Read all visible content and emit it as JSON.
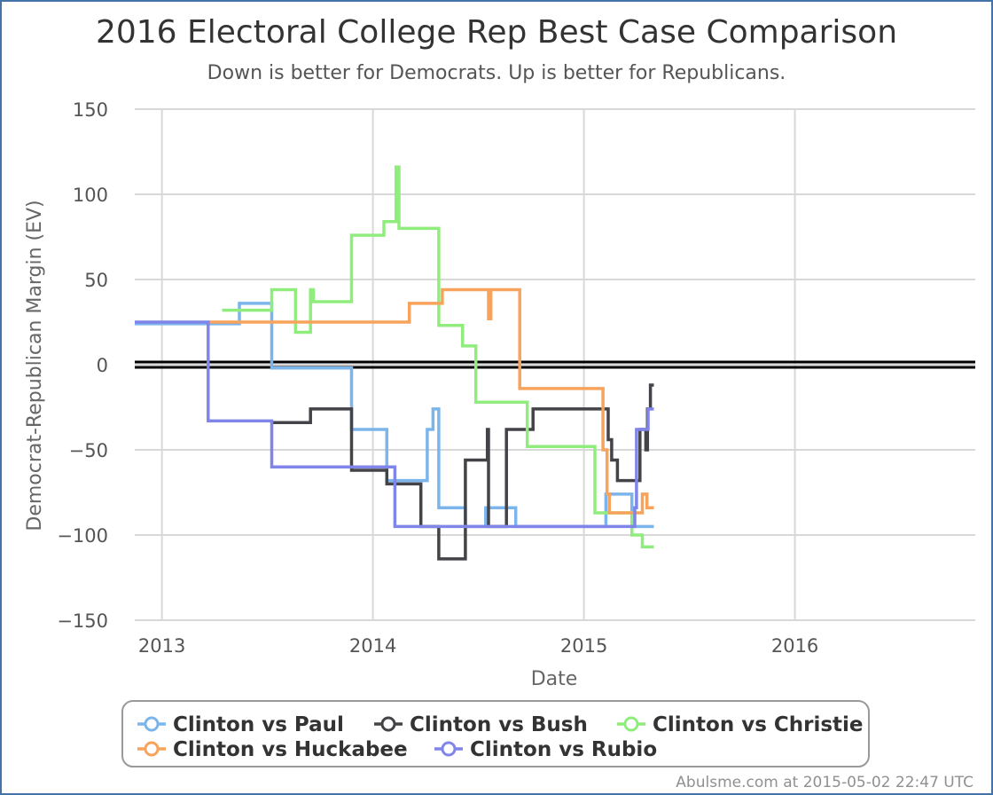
{
  "chart_data": {
    "type": "line",
    "title": "2016 Electoral College Rep Best Case Comparison",
    "subtitle": "Down is better for Democrats. Up is better for Republicans.",
    "xlabel": "Date",
    "ylabel": "Democrat-Republican Margin (EV)",
    "xlim": [
      "2012-11-15",
      "2016-11-08"
    ],
    "ylim": [
      -150,
      150
    ],
    "xticks": [
      {
        "date": "2013-01-01",
        "label": "2013"
      },
      {
        "date": "2014-01-01",
        "label": "2014"
      },
      {
        "date": "2015-01-01",
        "label": "2015"
      },
      {
        "date": "2016-01-01",
        "label": "2016"
      }
    ],
    "yticks": [
      {
        "value": 150,
        "label": "150"
      },
      {
        "value": 100,
        "label": "100"
      },
      {
        "value": 50,
        "label": "50"
      },
      {
        "value": 0,
        "label": "0"
      },
      {
        "value": -50,
        "label": "−50"
      },
      {
        "value": -100,
        "label": "−100"
      },
      {
        "value": -150,
        "label": "−150"
      }
    ],
    "reference_line": 0,
    "grid": true,
    "legend_position": "bottom",
    "credit": "Abulsme.com at 2015-05-02 22:47 UTC",
    "series": [
      {
        "name": "Clinton vs Paul",
        "color": "#7cb5ec",
        "points": [
          [
            "2012-11-15",
            24
          ],
          [
            "2013-05-15",
            24
          ],
          [
            "2013-05-15",
            36
          ],
          [
            "2013-07-10",
            36
          ],
          [
            "2013-07-10",
            -2
          ],
          [
            "2013-11-25",
            -2
          ],
          [
            "2013-11-25",
            -38
          ],
          [
            "2014-01-25",
            -38
          ],
          [
            "2014-01-25",
            -68
          ],
          [
            "2014-04-05",
            -68
          ],
          [
            "2014-04-05",
            -38
          ],
          [
            "2014-04-15",
            -38
          ],
          [
            "2014-04-15",
            -26
          ],
          [
            "2014-04-25",
            -26
          ],
          [
            "2014-04-25",
            -84
          ],
          [
            "2014-06-10",
            -84
          ],
          [
            "2014-06-10",
            -95
          ],
          [
            "2014-07-15",
            -95
          ],
          [
            "2014-07-15",
            -84
          ],
          [
            "2014-09-05",
            -84
          ],
          [
            "2014-09-05",
            -95
          ],
          [
            "2015-02-08",
            -95
          ],
          [
            "2015-02-08",
            -76
          ],
          [
            "2015-03-25",
            -76
          ],
          [
            "2015-03-25",
            -95
          ],
          [
            "2015-05-02",
            -95
          ]
        ]
      },
      {
        "name": "Clinton vs Bush",
        "color": "#434348",
        "points": [
          [
            "2013-07-10",
            -34
          ],
          [
            "2013-09-15",
            -34
          ],
          [
            "2013-09-15",
            -26
          ],
          [
            "2013-11-25",
            -26
          ],
          [
            "2013-11-25",
            -62
          ],
          [
            "2014-01-25",
            -62
          ],
          [
            "2014-01-25",
            -70
          ],
          [
            "2014-03-25",
            -70
          ],
          [
            "2014-03-25",
            -95
          ],
          [
            "2014-04-25",
            -95
          ],
          [
            "2014-04-25",
            -114
          ],
          [
            "2014-06-10",
            -114
          ],
          [
            "2014-06-10",
            -56
          ],
          [
            "2014-07-18",
            -56
          ],
          [
            "2014-07-18",
            -38
          ],
          [
            "2014-07-20",
            -38
          ],
          [
            "2014-07-20",
            -95
          ],
          [
            "2014-08-20",
            -95
          ],
          [
            "2014-08-20",
            -38
          ],
          [
            "2014-10-05",
            -38
          ],
          [
            "2014-10-05",
            -26
          ],
          [
            "2015-02-12",
            -26
          ],
          [
            "2015-02-12",
            -44
          ],
          [
            "2015-02-18",
            -44
          ],
          [
            "2015-02-18",
            -56
          ],
          [
            "2015-02-28",
            -56
          ],
          [
            "2015-02-28",
            -68
          ],
          [
            "2015-04-08",
            -68
          ],
          [
            "2015-04-08",
            -38
          ],
          [
            "2015-04-18",
            -38
          ],
          [
            "2015-04-18",
            -50
          ],
          [
            "2015-04-21",
            -50
          ],
          [
            "2015-04-21",
            -26
          ],
          [
            "2015-04-26",
            -26
          ],
          [
            "2015-04-26",
            -12
          ],
          [
            "2015-05-02",
            -12
          ]
        ]
      },
      {
        "name": "Clinton vs Christie",
        "color": "#90ed7d",
        "points": [
          [
            "2013-04-15",
            32
          ],
          [
            "2013-07-10",
            32
          ],
          [
            "2013-07-10",
            44
          ],
          [
            "2013-08-20",
            44
          ],
          [
            "2013-08-20",
            19
          ],
          [
            "2013-09-15",
            19
          ],
          [
            "2013-09-15",
            44
          ],
          [
            "2013-09-20",
            44
          ],
          [
            "2013-09-20",
            37
          ],
          [
            "2013-11-25",
            37
          ],
          [
            "2013-11-25",
            76
          ],
          [
            "2014-01-20",
            76
          ],
          [
            "2014-01-20",
            84
          ],
          [
            "2014-02-10",
            84
          ],
          [
            "2014-02-10",
            116
          ],
          [
            "2014-02-15",
            116
          ],
          [
            "2014-02-15",
            80
          ],
          [
            "2014-04-25",
            80
          ],
          [
            "2014-04-25",
            23
          ],
          [
            "2014-06-05",
            23
          ],
          [
            "2014-06-05",
            11
          ],
          [
            "2014-06-28",
            11
          ],
          [
            "2014-06-28",
            -22
          ],
          [
            "2014-09-25",
            -22
          ],
          [
            "2014-09-25",
            -48
          ],
          [
            "2015-01-20",
            -48
          ],
          [
            "2015-01-20",
            -87
          ],
          [
            "2015-03-25",
            -87
          ],
          [
            "2015-03-25",
            -100
          ],
          [
            "2015-04-12",
            -100
          ],
          [
            "2015-04-12",
            -107
          ],
          [
            "2015-05-02",
            -107
          ]
        ]
      },
      {
        "name": "Clinton vs Huckabee",
        "color": "#f7a35c",
        "points": [
          [
            "2013-03-22",
            25
          ],
          [
            "2014-03-05",
            25
          ],
          [
            "2014-03-05",
            36
          ],
          [
            "2014-05-01",
            36
          ],
          [
            "2014-05-01",
            44
          ],
          [
            "2014-07-20",
            44
          ],
          [
            "2014-07-20",
            27
          ],
          [
            "2014-07-24",
            27
          ],
          [
            "2014-07-24",
            44
          ],
          [
            "2014-09-12",
            44
          ],
          [
            "2014-09-12",
            -14
          ],
          [
            "2015-02-03",
            -14
          ],
          [
            "2015-02-03",
            -50
          ],
          [
            "2015-02-10",
            -50
          ],
          [
            "2015-02-10",
            -76
          ],
          [
            "2015-02-14",
            -76
          ],
          [
            "2015-02-14",
            -87
          ],
          [
            "2015-04-12",
            -87
          ],
          [
            "2015-04-12",
            -76
          ],
          [
            "2015-04-20",
            -76
          ],
          [
            "2015-04-20",
            -84
          ],
          [
            "2015-05-02",
            -84
          ]
        ]
      },
      {
        "name": "Clinton vs Rubio",
        "color": "#8085e9",
        "points": [
          [
            "2012-11-15",
            25
          ],
          [
            "2013-03-22",
            25
          ],
          [
            "2013-03-22",
            -33
          ],
          [
            "2013-07-10",
            -33
          ],
          [
            "2013-07-10",
            -60
          ],
          [
            "2014-02-08",
            -60
          ],
          [
            "2014-02-08",
            -95
          ],
          [
            "2015-03-30",
            -95
          ],
          [
            "2015-03-30",
            -84
          ],
          [
            "2015-04-02",
            -84
          ],
          [
            "2015-04-02",
            -38
          ],
          [
            "2015-04-22",
            -38
          ],
          [
            "2015-04-22",
            -26
          ],
          [
            "2015-05-02",
            -26
          ]
        ]
      }
    ]
  }
}
